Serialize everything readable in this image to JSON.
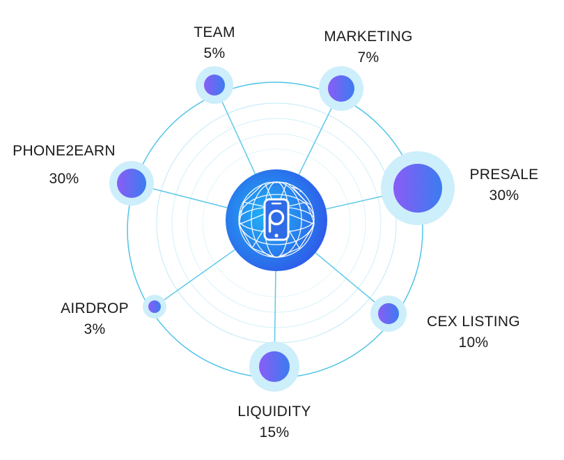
{
  "diagram": {
    "center_logo": "phone-p-icon",
    "colors": {
      "ring_stroke": "#4fc3e8",
      "spoke_stroke": "#5ec8ea",
      "halo_fill": "#cdeefb",
      "node_gradient_start": "#8a5cf6",
      "node_gradient_end": "#3b7cf0",
      "hub_gradient_start": "#2f56e8",
      "hub_gradient_end": "#1fb4f5"
    },
    "segments": [
      {
        "id": "team",
        "label": "TEAM",
        "percent": "5%",
        "value": 5
      },
      {
        "id": "marketing",
        "label": "MARKETING",
        "percent": "7%",
        "value": 7
      },
      {
        "id": "presale",
        "label": "PRESALE",
        "percent": "30%",
        "value": 30
      },
      {
        "id": "cex-listing",
        "label": "CEX LISTING",
        "percent": "10%",
        "value": 10
      },
      {
        "id": "liquidity",
        "label": "LIQUIDITY",
        "percent": "15%",
        "value": 15
      },
      {
        "id": "airdrop",
        "label": "AIRDROP",
        "percent": "3%",
        "value": 3
      },
      {
        "id": "phone2earn",
        "label": "PHONE2EARN",
        "percent": "30%",
        "value": 30
      }
    ]
  }
}
